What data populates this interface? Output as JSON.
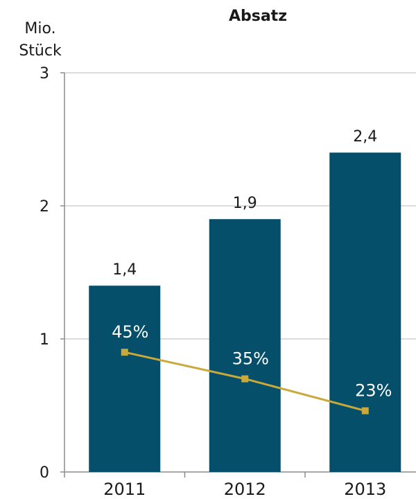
{
  "chart_data": {
    "type": "bar",
    "title": "Absatz",
    "ylabel": "Mio. Stück",
    "ylabel_lines": [
      "Mio.",
      "Stück"
    ],
    "categories": [
      "2011",
      "2012",
      "2013"
    ],
    "ylim": [
      0,
      3
    ],
    "yticks": [
      "0",
      "1",
      "2",
      "3"
    ],
    "grid": true,
    "series": [
      {
        "values": [
          1.4,
          1.9,
          2.4
        ],
        "labels": [
          "1,4",
          "1,9",
          "2,4"
        ],
        "color": "#064f6b"
      },
      {
        "type": "line",
        "values": [
          0.9,
          0.7,
          0.46
        ],
        "labels": [
          "45%",
          "35%",
          "23%"
        ],
        "color": "#c8a93a",
        "label_color": "#ffffff"
      }
    ]
  }
}
